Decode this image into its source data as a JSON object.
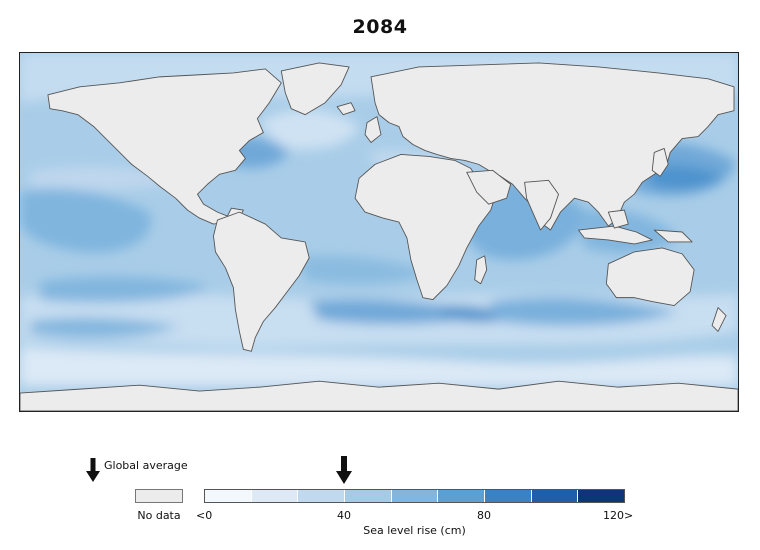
{
  "title": "2084",
  "map": {
    "colors": {
      "no_data": "#ececec",
      "coastline": "#555555",
      "ocean_base": "#a9cde8"
    }
  },
  "legend": {
    "global_average_label": "Global average",
    "no_data_label": "No data",
    "scale_title": "Sea level rise (cm)",
    "tick_labels": [
      "<0",
      "40",
      "80",
      "120>"
    ],
    "global_average_value_cm": 40,
    "scale_min_cm": 0,
    "scale_max_cm": 120,
    "swatches": [
      "#f3f8fc",
      "#dde9f5",
      "#c1d9ee",
      "#a6cbe6",
      "#82b6de",
      "#5c9fd2",
      "#3b82c4",
      "#1f5ea8",
      "#0f3579"
    ]
  }
}
